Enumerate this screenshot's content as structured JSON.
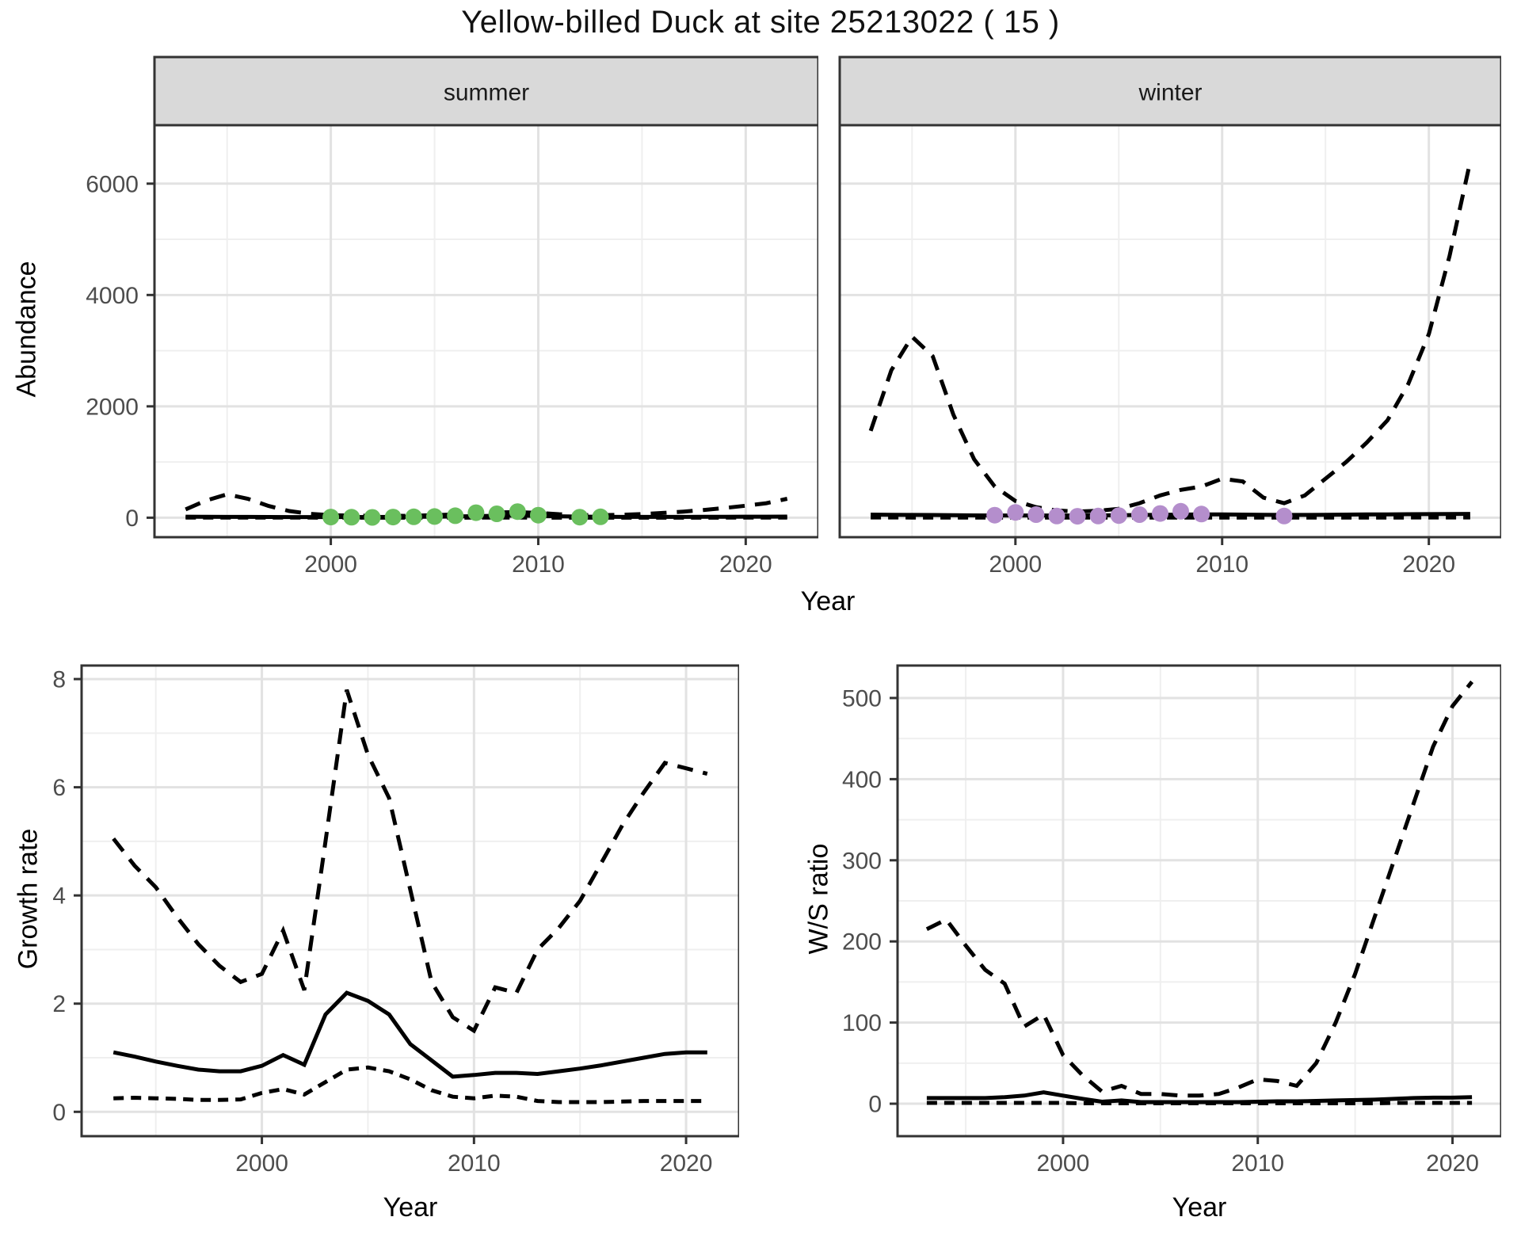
{
  "title": "Yellow-billed Duck at site 25213022 ( 15 )",
  "colors": {
    "line": "#000000",
    "summer_points": "#6abf5e",
    "winter_points": "#b48ecc",
    "strip_bg": "#d9d9d9",
    "strip_text": "#1a1a1a",
    "panel_border": "#333333",
    "grid_major": "#e2e2e2",
    "grid_minor": "#efefef",
    "tick_text": "#4d4d4d",
    "tick_mark": "#333333",
    "panel_bg": "#ffffff"
  },
  "chart_data": [
    {
      "id": "abundance-summer",
      "type": "line",
      "facet_label": "summer",
      "xlabel": "Year",
      "ylabel": "Abundance",
      "xlim": [
        1991.5,
        2023.5
      ],
      "ylim": [
        -350,
        7050
      ],
      "xticks": [
        2000,
        2010,
        2020
      ],
      "yticks": [
        0,
        2000,
        4000,
        6000
      ],
      "xminor": [
        1995,
        2005,
        2015
      ],
      "yminor": [
        1000,
        3000,
        5000
      ],
      "grid": true,
      "legend": "none",
      "series": [
        {
          "name": "lower_ci",
          "style": "dashed_short",
          "x": [
            1993,
            1994,
            1995,
            1996,
            1997,
            1998,
            1999,
            2000,
            2001,
            2002,
            2003,
            2004,
            2005,
            2006,
            2007,
            2008,
            2009,
            2010,
            2011,
            2012,
            2013,
            2014,
            2015,
            2016,
            2017,
            2018,
            2019,
            2020,
            2021,
            2022
          ],
          "y": [
            3,
            2,
            2,
            1,
            1,
            1,
            1,
            0,
            0,
            0,
            0,
            0,
            0,
            0,
            1,
            1,
            1,
            1,
            0,
            0,
            0,
            0,
            0,
            0,
            0,
            0,
            1,
            1,
            2,
            3
          ]
        },
        {
          "name": "upper_ci",
          "style": "dashed",
          "x": [
            1993,
            1994,
            1995,
            1996,
            1997,
            1998,
            1999,
            2000,
            2001,
            2002,
            2003,
            2004,
            2005,
            2006,
            2007,
            2008,
            2009,
            2010,
            2011,
            2012,
            2013,
            2014,
            2015,
            2016,
            2017,
            2018,
            2019,
            2020,
            2021,
            2022
          ],
          "y": [
            150,
            310,
            420,
            340,
            210,
            120,
            70,
            45,
            38,
            33,
            32,
            36,
            45,
            60,
            80,
            95,
            100,
            85,
            62,
            48,
            45,
            52,
            65,
            85,
            110,
            140,
            175,
            215,
            260,
            340
          ]
        },
        {
          "name": "median",
          "style": "solid",
          "x": [
            1993,
            1994,
            1995,
            1996,
            1997,
            1998,
            1999,
            2000,
            2001,
            2002,
            2003,
            2004,
            2005,
            2006,
            2007,
            2008,
            2009,
            2010,
            2011,
            2012,
            2013,
            2014,
            2015,
            2016,
            2017,
            2018,
            2019,
            2020,
            2021,
            2022
          ],
          "y": [
            18,
            16,
            15,
            14,
            13,
            12,
            12,
            12,
            12,
            13,
            14,
            16,
            18,
            22,
            28,
            34,
            38,
            32,
            26,
            20,
            17,
            15,
            14,
            14,
            15,
            16,
            17,
            18,
            19,
            20
          ]
        }
      ],
      "points": {
        "name": "observed_counts",
        "color_key": "summer_points",
        "x": [
          2000,
          2001,
          2002,
          2003,
          2004,
          2005,
          2006,
          2007,
          2008,
          2009,
          2010,
          2012,
          2013
        ],
        "y": [
          12,
          8,
          6,
          12,
          16,
          22,
          35,
          90,
          70,
          110,
          45,
          10,
          16
        ]
      }
    },
    {
      "id": "abundance-winter",
      "type": "line",
      "facet_label": "winter",
      "xlabel": "Year",
      "ylabel": "Abundance",
      "xlim": [
        1991.5,
        2023.5
      ],
      "ylim": [
        -350,
        7050
      ],
      "xticks": [
        2000,
        2010,
        2020
      ],
      "yticks": [
        0,
        2000,
        4000,
        6000
      ],
      "xminor": [
        1995,
        2005,
        2015
      ],
      "yminor": [
        1000,
        3000,
        5000
      ],
      "grid": true,
      "legend": "none",
      "series": [
        {
          "name": "lower_ci",
          "style": "dashed_short",
          "x": [
            1993,
            1994,
            1995,
            1996,
            1997,
            1998,
            1999,
            2000,
            2001,
            2002,
            2003,
            2004,
            2005,
            2006,
            2007,
            2008,
            2009,
            2010,
            2011,
            2012,
            2013,
            2014,
            2015,
            2016,
            2017,
            2018,
            2019,
            2020,
            2021,
            2022
          ],
          "y": [
            5,
            4,
            3,
            2,
            2,
            1,
            1,
            1,
            1,
            1,
            1,
            1,
            1,
            1,
            2,
            2,
            2,
            2,
            2,
            1,
            1,
            1,
            1,
            2,
            2,
            3,
            3,
            4,
            4,
            5
          ]
        },
        {
          "name": "upper_ci",
          "style": "dashed",
          "x": [
            1993,
            1994,
            1995,
            1996,
            1997,
            1998,
            1999,
            2000,
            2001,
            2002,
            2003,
            2004,
            2005,
            2006,
            2007,
            2008,
            2009,
            2010,
            2011,
            2012,
            2013,
            2014,
            2015,
            2016,
            2017,
            2018,
            2019,
            2020,
            2021,
            2022
          ],
          "y": [
            1560,
            2650,
            3250,
            2900,
            1850,
            1050,
            560,
            300,
            190,
            130,
            110,
            125,
            160,
            260,
            400,
            500,
            560,
            700,
            650,
            360,
            260,
            400,
            700,
            1000,
            1350,
            1750,
            2400,
            3300,
            4700,
            6400
          ]
        },
        {
          "name": "median",
          "style": "solid",
          "x": [
            1993,
            1994,
            1995,
            1996,
            1997,
            1998,
            1999,
            2000,
            2001,
            2002,
            2003,
            2004,
            2005,
            2006,
            2007,
            2008,
            2009,
            2010,
            2011,
            2012,
            2013,
            2014,
            2015,
            2016,
            2017,
            2018,
            2019,
            2020,
            2021,
            2022
          ],
          "y": [
            55,
            52,
            50,
            48,
            45,
            42,
            40,
            40,
            40,
            40,
            40,
            42,
            45,
            48,
            52,
            55,
            58,
            58,
            55,
            52,
            50,
            50,
            52,
            55,
            58,
            60,
            62,
            64,
            66,
            68
          ]
        }
      ],
      "points": {
        "name": "observed_counts",
        "color_key": "winter_points",
        "x": [
          1999,
          2000,
          2001,
          2002,
          2003,
          2004,
          2005,
          2006,
          2007,
          2008,
          2009,
          2013
        ],
        "y": [
          45,
          95,
          55,
          30,
          25,
          30,
          38,
          55,
          75,
          115,
          65,
          30
        ]
      }
    },
    {
      "id": "growth-rate",
      "type": "line",
      "facet_label": "",
      "xlabel": "Year",
      "ylabel": "Growth rate",
      "xlim": [
        1991.5,
        2022.5
      ],
      "ylim": [
        -0.45,
        8.25
      ],
      "xticks": [
        2000,
        2010,
        2020
      ],
      "yticks": [
        0,
        2,
        4,
        6,
        8
      ],
      "xminor": [
        1995,
        2005,
        2015
      ],
      "yminor": [
        1,
        3,
        5,
        7
      ],
      "grid": true,
      "legend": "none",
      "series": [
        {
          "name": "lower_ci",
          "style": "dashed_short",
          "x": [
            1993,
            1994,
            1995,
            1996,
            1997,
            1998,
            1999,
            2000,
            2001,
            2002,
            2003,
            2004,
            2005,
            2006,
            2007,
            2008,
            2009,
            2010,
            2011,
            2012,
            2013,
            2014,
            2015,
            2016,
            2017,
            2018,
            2019,
            2020,
            2021
          ],
          "y": [
            0.25,
            0.26,
            0.25,
            0.24,
            0.22,
            0.22,
            0.23,
            0.35,
            0.42,
            0.32,
            0.55,
            0.78,
            0.82,
            0.75,
            0.6,
            0.4,
            0.28,
            0.25,
            0.3,
            0.28,
            0.2,
            0.18,
            0.18,
            0.18,
            0.19,
            0.2,
            0.2,
            0.2,
            0.2
          ]
        },
        {
          "name": "upper_ci",
          "style": "dashed",
          "x": [
            1993,
            1994,
            1995,
            1996,
            1997,
            1998,
            1999,
            2000,
            2001,
            2002,
            2003,
            2004,
            2005,
            2006,
            2007,
            2008,
            2009,
            2010,
            2011,
            2012,
            2013,
            2014,
            2015,
            2016,
            2017,
            2018,
            2019,
            2020,
            2021
          ],
          "y": [
            5.05,
            4.55,
            4.15,
            3.6,
            3.1,
            2.7,
            2.4,
            2.55,
            3.35,
            2.25,
            5.0,
            7.8,
            6.6,
            5.8,
            4.1,
            2.4,
            1.75,
            1.5,
            2.3,
            2.2,
            3.0,
            3.4,
            3.9,
            4.6,
            5.3,
            5.9,
            6.45,
            6.35,
            6.25
          ]
        },
        {
          "name": "median",
          "style": "solid",
          "x": [
            1993,
            1994,
            1995,
            1996,
            1997,
            1998,
            1999,
            2000,
            2001,
            2002,
            2003,
            2004,
            2005,
            2006,
            2007,
            2008,
            2009,
            2010,
            2011,
            2012,
            2013,
            2014,
            2015,
            2016,
            2017,
            2018,
            2019,
            2020,
            2021
          ],
          "y": [
            1.1,
            1.02,
            0.93,
            0.85,
            0.78,
            0.75,
            0.75,
            0.85,
            1.05,
            0.87,
            1.8,
            2.2,
            2.05,
            1.8,
            1.25,
            0.95,
            0.65,
            0.68,
            0.72,
            0.72,
            0.7,
            0.75,
            0.8,
            0.86,
            0.93,
            1.0,
            1.07,
            1.1,
            1.1
          ]
        }
      ],
      "points": null
    },
    {
      "id": "ws-ratio",
      "type": "line",
      "facet_label": "",
      "xlabel": "Year",
      "ylabel": "W/S ratio",
      "xlim": [
        1991.5,
        2022.5
      ],
      "ylim": [
        -40,
        540
      ],
      "xticks": [
        2000,
        2010,
        2020
      ],
      "yticks": [
        0,
        100,
        200,
        300,
        400,
        500
      ],
      "xminor": [
        1995,
        2005,
        2015
      ],
      "yminor": [
        50,
        150,
        250,
        350,
        450
      ],
      "grid": true,
      "legend": "none",
      "series": [
        {
          "name": "lower_ci",
          "style": "dashed_short",
          "x": [
            1993,
            1994,
            1995,
            1996,
            1997,
            1998,
            1999,
            2000,
            2001,
            2002,
            2003,
            2004,
            2005,
            2006,
            2007,
            2008,
            2009,
            2010,
            2011,
            2012,
            2013,
            2014,
            2015,
            2016,
            2017,
            2018,
            2019,
            2020,
            2021
          ],
          "y": [
            1,
            1,
            1,
            1,
            1,
            1,
            1,
            1,
            0.5,
            0.5,
            0.5,
            0.5,
            0.5,
            0.5,
            0.5,
            0.5,
            0.5,
            0.5,
            0.5,
            0.5,
            0.5,
            0.5,
            0.5,
            0.5,
            1,
            1,
            1,
            1,
            1
          ]
        },
        {
          "name": "upper_ci",
          "style": "dashed",
          "x": [
            1993,
            1994,
            1995,
            1996,
            1997,
            1998,
            1999,
            2000,
            2001,
            2002,
            2003,
            2004,
            2005,
            2006,
            2007,
            2008,
            2009,
            2010,
            2011,
            2012,
            2013,
            2014,
            2015,
            2016,
            2017,
            2018,
            2019,
            2020,
            2021
          ],
          "y": [
            215,
            227,
            195,
            165,
            148,
            95,
            110,
            60,
            35,
            15,
            22,
            12,
            12,
            10,
            10,
            12,
            20,
            30,
            28,
            22,
            50,
            100,
            160,
            230,
            300,
            370,
            440,
            490,
            520
          ]
        },
        {
          "name": "median",
          "style": "solid",
          "x": [
            1993,
            1994,
            1995,
            1996,
            1997,
            1998,
            1999,
            2000,
            2001,
            2002,
            2003,
            2004,
            2005,
            2006,
            2007,
            2008,
            2009,
            2010,
            2011,
            2012,
            2013,
            2014,
            2015,
            2016,
            2017,
            2018,
            2019,
            2020,
            2021
          ],
          "y": [
            7,
            7,
            7,
            7,
            8,
            10,
            14,
            10,
            6,
            2.5,
            4,
            2,
            2,
            2,
            2,
            2,
            2,
            2.5,
            3,
            3,
            3.5,
            4,
            4.5,
            5,
            6,
            7,
            7.5,
            7.5,
            8
          ]
        }
      ],
      "points": null
    }
  ]
}
